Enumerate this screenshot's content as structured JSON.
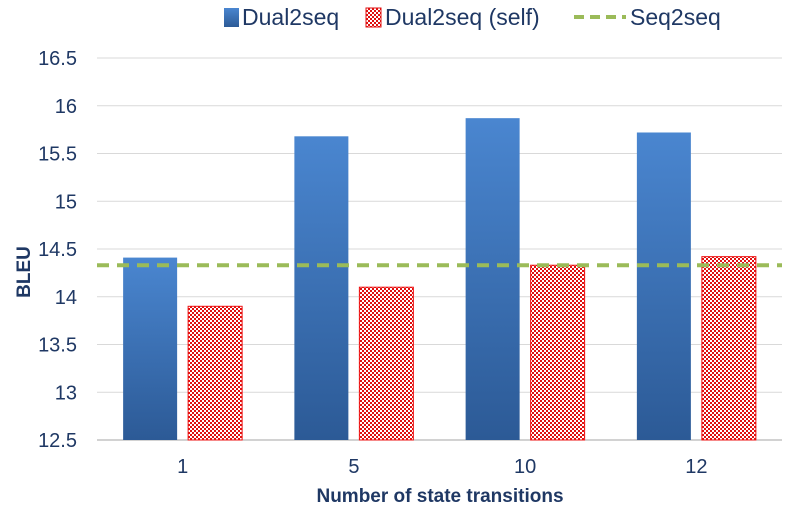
{
  "chart_data": {
    "type": "bar",
    "categories": [
      "1",
      "5",
      "10",
      "12"
    ],
    "series": [
      {
        "name": "Dual2seq",
        "values": [
          14.41,
          15.68,
          15.87,
          15.72
        ],
        "color": "#3a73c2",
        "pattern": "solid-gradient"
      },
      {
        "name": "Dual2seq (self)",
        "values": [
          13.9,
          14.1,
          14.33,
          14.42
        ],
        "color": "#ee1111",
        "pattern": "checkerboard"
      }
    ],
    "reference_lines": [
      {
        "name": "Seq2seq",
        "value": 14.33,
        "style": "dashed",
        "color": "#9bbb59"
      }
    ],
    "xlabel": "Number of state transitions",
    "ylabel": "BLEU",
    "ylim": [
      12.5,
      16.5
    ],
    "yticks": [
      "12.5",
      "13",
      "13.5",
      "14",
      "14.5",
      "15",
      "15.5",
      "16",
      "16.5"
    ],
    "grid": "horizontal",
    "legend_position": "top"
  }
}
